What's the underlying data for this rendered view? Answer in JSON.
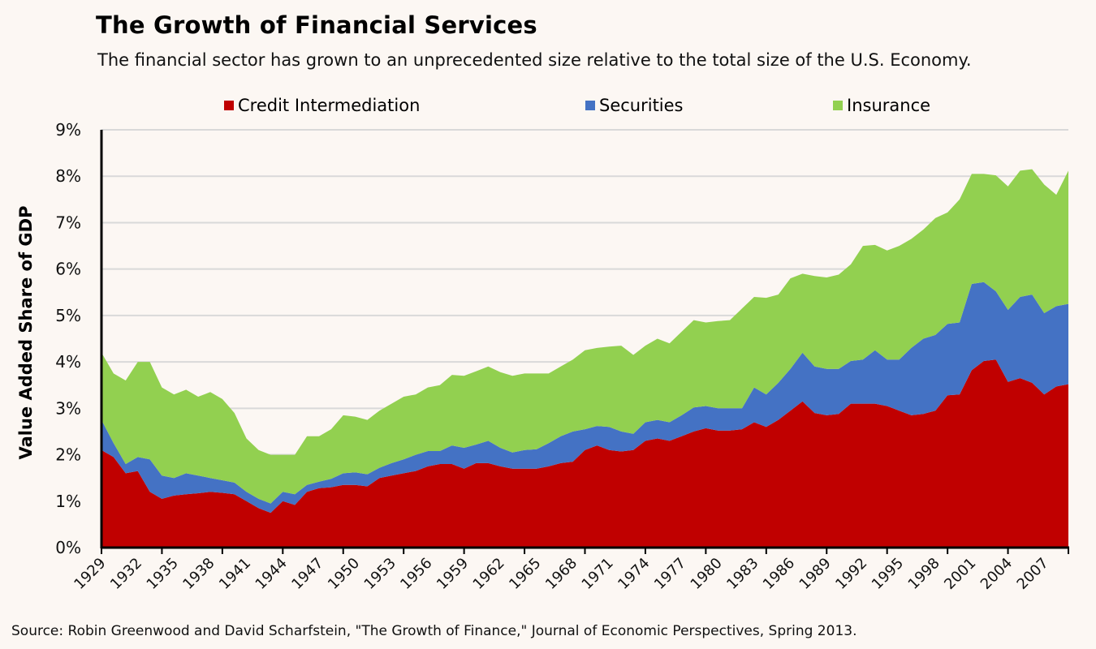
{
  "chart_data": {
    "type": "area",
    "stacked": true,
    "title": "The Growth of Financial Services",
    "subtitle": "The financial sector has grown to an unprecedented size relative to the total size of the U.S. Economy.",
    "xlabel": "",
    "ylabel": "Value Added Share of GDP",
    "ylim": [
      0,
      9
    ],
    "y_ticks": [
      "0%",
      "1%",
      "2%",
      "3%",
      "4%",
      "5%",
      "6%",
      "7%",
      "8%",
      "9%"
    ],
    "x_tick_labels": [
      "1929",
      "1932",
      "1935",
      "1938",
      "1941",
      "1944",
      "1947",
      "1950",
      "1953",
      "1956",
      "1959",
      "1962",
      "1965",
      "1968",
      "1971",
      "1974",
      "1977",
      "1980",
      "1983",
      "1986",
      "1989",
      "1992",
      "1995",
      "1998",
      "2001",
      "2004",
      "2007"
    ],
    "grid": true,
    "legend_position": "top",
    "source": "Source: Robin Greenwood and David Scharfstein, \"The Growth of Finance,\" Journal of Economic Perspectives, Spring 2013.",
    "x": [
      1929,
      1930,
      1931,
      1932,
      1933,
      1934,
      1935,
      1936,
      1937,
      1938,
      1939,
      1940,
      1941,
      1942,
      1943,
      1944,
      1945,
      1946,
      1947,
      1948,
      1949,
      1950,
      1951,
      1952,
      1953,
      1954,
      1955,
      1956,
      1957,
      1958,
      1959,
      1960,
      1961,
      1962,
      1963,
      1964,
      1965,
      1966,
      1967,
      1968,
      1969,
      1970,
      1971,
      1972,
      1973,
      1974,
      1975,
      1976,
      1977,
      1978,
      1979,
      1980,
      1981,
      1982,
      1983,
      1984,
      1985,
      1986,
      1987,
      1988,
      1989,
      1990,
      1991,
      1992,
      1993,
      1994,
      1995,
      1996,
      1997,
      1998,
      1999,
      2000,
      2001,
      2002,
      2003,
      2004,
      2005,
      2006,
      2007,
      2008,
      2009
    ],
    "series": [
      {
        "name": "Credit Intermediation",
        "color": "#c00000",
        "values": [
          2.1,
          1.95,
          1.6,
          1.65,
          1.2,
          1.05,
          1.12,
          1.15,
          1.17,
          1.2,
          1.18,
          1.15,
          1.0,
          0.85,
          0.75,
          1.0,
          0.92,
          1.2,
          1.28,
          1.3,
          1.35,
          1.35,
          1.32,
          1.5,
          1.55,
          1.6,
          1.65,
          1.75,
          1.8,
          1.8,
          1.7,
          1.82,
          1.82,
          1.75,
          1.7,
          1.7,
          1.7,
          1.75,
          1.82,
          1.85,
          2.1,
          2.2,
          2.1,
          2.07,
          2.1,
          2.3,
          2.35,
          2.3,
          2.4,
          2.5,
          2.57,
          2.52,
          2.52,
          2.55,
          2.7,
          2.6,
          2.75,
          2.95,
          3.15,
          2.9,
          2.85,
          2.88,
          3.1,
          3.1,
          3.1,
          3.05,
          2.95,
          2.85,
          2.88,
          2.95,
          3.28,
          3.3,
          3.82,
          4.02,
          4.05,
          3.57,
          3.65,
          3.55,
          3.3,
          3.47,
          3.52
        ]
      },
      {
        "name": "Securities",
        "color": "#4472c4",
        "values": [
          0.65,
          0.3,
          0.2,
          0.3,
          0.7,
          0.5,
          0.38,
          0.45,
          0.38,
          0.3,
          0.27,
          0.25,
          0.2,
          0.2,
          0.2,
          0.2,
          0.23,
          0.15,
          0.14,
          0.18,
          0.25,
          0.27,
          0.26,
          0.22,
          0.27,
          0.3,
          0.35,
          0.33,
          0.28,
          0.4,
          0.45,
          0.4,
          0.48,
          0.4,
          0.35,
          0.4,
          0.42,
          0.5,
          0.58,
          0.65,
          0.45,
          0.42,
          0.5,
          0.43,
          0.35,
          0.4,
          0.4,
          0.4,
          0.45,
          0.52,
          0.48,
          0.48,
          0.48,
          0.45,
          0.75,
          0.7,
          0.8,
          0.9,
          1.05,
          1.0,
          1.0,
          0.97,
          0.92,
          0.95,
          1.15,
          1.0,
          1.1,
          1.45,
          1.62,
          1.63,
          1.54,
          1.55,
          1.86,
          1.7,
          1.47,
          1.55,
          1.75,
          1.9,
          1.75,
          1.73,
          1.73
        ]
      },
      {
        "name": "Insurance",
        "color": "#92d050",
        "values": [
          1.45,
          1.5,
          1.8,
          2.05,
          2.1,
          1.9,
          1.8,
          1.8,
          1.7,
          1.85,
          1.75,
          1.5,
          1.15,
          1.05,
          1.05,
          0.8,
          0.85,
          1.05,
          0.98,
          1.07,
          1.25,
          1.2,
          1.17,
          1.23,
          1.28,
          1.35,
          1.3,
          1.37,
          1.42,
          1.52,
          1.55,
          1.58,
          1.6,
          1.63,
          1.65,
          1.65,
          1.63,
          1.5,
          1.5,
          1.55,
          1.7,
          1.68,
          1.73,
          1.85,
          1.7,
          1.65,
          1.75,
          1.7,
          1.8,
          1.88,
          1.8,
          1.88,
          1.9,
          2.15,
          1.95,
          2.08,
          1.9,
          1.95,
          1.7,
          1.95,
          1.97,
          2.03,
          2.08,
          2.45,
          2.27,
          2.35,
          2.45,
          2.35,
          2.35,
          2.52,
          2.4,
          2.65,
          2.37,
          2.33,
          2.5,
          2.66,
          2.72,
          2.7,
          2.77,
          2.4,
          2.87
        ]
      }
    ]
  }
}
